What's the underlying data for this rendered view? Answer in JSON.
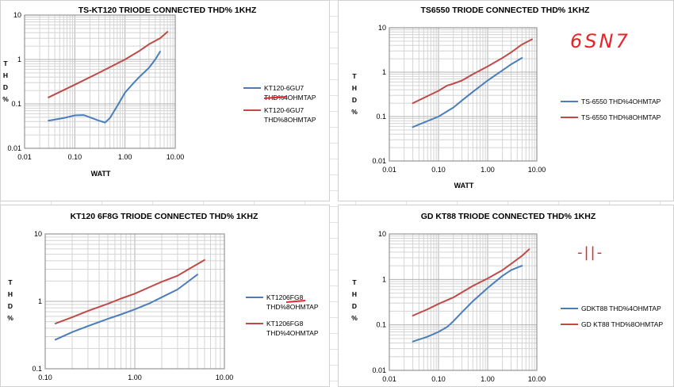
{
  "colors": {
    "blue": "#4a7ebb",
    "red": "#be4b48",
    "annotation": "#e8242b",
    "grid": "#c8c8c8",
    "axis": "#808080"
  },
  "annotations": {
    "handwritten_right_top": "6SN7",
    "handwritten_right_bottom": "-||-"
  },
  "chart_data": [
    {
      "type": "line",
      "title": "TS-KT120 TRIODE CONNECTED THD% 1KHZ",
      "xlabel": "WATT",
      "ylabel": "THD%",
      "xscale": "log",
      "yscale": "log",
      "xlim": [
        0.01,
        10
      ],
      "ylim": [
        0.01,
        10
      ],
      "xticks": [
        "0.01",
        "0.10",
        "1.00",
        "10.00"
      ],
      "yticks": [
        "0.01",
        "0.1",
        "1",
        "10"
      ],
      "grid": true,
      "legend": "right",
      "series": [
        {
          "name": "KT120-6GU7 THD%4OHMTAP",
          "color": "#4a7ebb",
          "x": [
            0.03,
            0.06,
            0.1,
            0.15,
            0.2,
            0.3,
            0.4,
            0.5,
            0.7,
            1.0,
            1.5,
            2.0,
            3.0,
            4.0,
            5.0
          ],
          "y": [
            0.042,
            0.048,
            0.055,
            0.056,
            0.05,
            0.042,
            0.038,
            0.048,
            0.09,
            0.18,
            0.3,
            0.42,
            0.65,
            1.0,
            1.5
          ]
        },
        {
          "name": "KT120-6GU7 THD%8OHMTAP",
          "color": "#be4b48",
          "x": [
            0.03,
            0.1,
            0.3,
            1.0,
            2.0,
            3.0,
            5.0,
            7.0
          ],
          "y": [
            0.14,
            0.27,
            0.5,
            1.0,
            1.6,
            2.2,
            3.0,
            4.2
          ]
        }
      ]
    },
    {
      "type": "line",
      "title": "TS6550 TRIODE CONNECTED THD% 1KHZ",
      "xlabel": "WATT",
      "ylabel": "THD%",
      "xscale": "log",
      "yscale": "log",
      "xlim": [
        0.01,
        10
      ],
      "ylim": [
        0.01,
        10
      ],
      "xticks": [
        "0.01",
        "0.10",
        "1.00",
        "10.00"
      ],
      "yticks": [
        "0.01",
        "0.1",
        "1",
        "10"
      ],
      "grid": true,
      "legend": "right",
      "series": [
        {
          "name": "TS-6550 THD%4OHMTAP",
          "color": "#4a7ebb",
          "x": [
            0.03,
            0.1,
            0.2,
            0.3,
            0.5,
            1.0,
            2.0,
            3.0,
            5.0
          ],
          "y": [
            0.058,
            0.1,
            0.16,
            0.23,
            0.36,
            0.65,
            1.1,
            1.5,
            2.1
          ]
        },
        {
          "name": "TS-6550 THD%8OHMTAP",
          "color": "#be4b48",
          "x": [
            0.03,
            0.1,
            0.15,
            0.2,
            0.3,
            0.5,
            1.0,
            2.0,
            3.0,
            5.0,
            8.0
          ],
          "y": [
            0.2,
            0.38,
            0.5,
            0.55,
            0.65,
            0.9,
            1.35,
            2.1,
            2.8,
            4.2,
            5.5
          ]
        }
      ]
    },
    {
      "type": "line",
      "title": "KT120 6F8G TRIODE CONNECTED THD% 1KHZ",
      "xlabel": "",
      "ylabel": "THD%",
      "xscale": "log",
      "yscale": "log",
      "xlim": [
        0.1,
        10
      ],
      "ylim": [
        0.1,
        10
      ],
      "xticks": [
        "0.10",
        "1.00",
        "10.00"
      ],
      "yticks": [
        "0.1",
        "1",
        "10"
      ],
      "grid": true,
      "legend": "right",
      "series": [
        {
          "name": "KT1206FG8 THD%8OHMTAP",
          "color": "#4a7ebb",
          "x": [
            0.13,
            0.2,
            0.3,
            0.5,
            0.7,
            1.0,
            1.5,
            2.0,
            3.0,
            5.0
          ],
          "y": [
            0.27,
            0.35,
            0.43,
            0.55,
            0.64,
            0.76,
            0.95,
            1.15,
            1.5,
            2.5
          ]
        },
        {
          "name": "KT1206FG8 THD%4OHMTAP",
          "color": "#be4b48",
          "x": [
            0.13,
            0.2,
            0.3,
            0.5,
            0.7,
            1.0,
            1.5,
            2.0,
            3.0,
            4.0,
            6.0
          ],
          "y": [
            0.47,
            0.58,
            0.72,
            0.92,
            1.1,
            1.3,
            1.65,
            1.95,
            2.4,
            3.0,
            4.1
          ]
        }
      ]
    },
    {
      "type": "line",
      "title": "GD KT88 TRIODE CONNECTED THD% 1KHZ",
      "xlabel": "",
      "ylabel": "THD%",
      "xscale": "log",
      "yscale": "log",
      "xlim": [
        0.01,
        10
      ],
      "ylim": [
        0.01,
        10
      ],
      "xticks": [
        "0.01",
        "0.10",
        "1.00",
        "10.00"
      ],
      "yticks": [
        "0.01",
        "0.1",
        "1",
        "10"
      ],
      "grid": true,
      "legend": "right",
      "series": [
        {
          "name": "GDKT88 THD%4OHMTAP",
          "color": "#4a7ebb",
          "x": [
            0.03,
            0.06,
            0.1,
            0.15,
            0.2,
            0.3,
            0.5,
            1.0,
            2.0,
            3.0,
            5.0
          ],
          "y": [
            0.043,
            0.055,
            0.07,
            0.09,
            0.12,
            0.19,
            0.33,
            0.65,
            1.2,
            1.6,
            2.0
          ]
        },
        {
          "name": "GD KT88 THD%8OHMTAP",
          "color": "#be4b48",
          "x": [
            0.03,
            0.06,
            0.1,
            0.2,
            0.3,
            0.5,
            1.0,
            2.0,
            3.0,
            5.0,
            7.0
          ],
          "y": [
            0.16,
            0.22,
            0.29,
            0.4,
            0.52,
            0.72,
            1.05,
            1.6,
            2.2,
            3.3,
            4.6
          ]
        }
      ]
    }
  ]
}
